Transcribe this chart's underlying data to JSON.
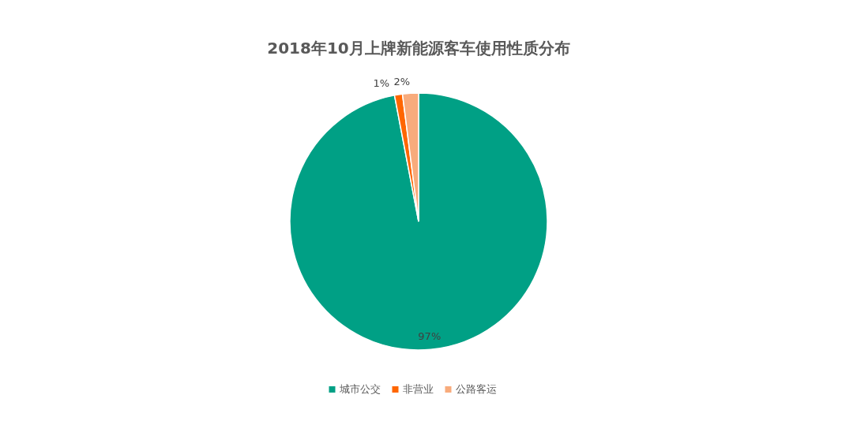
{
  "chart_data": {
    "type": "pie",
    "title": "2018年10月上牌新能源客车使用性质分布",
    "categories": [
      "城市公交",
      "非营业",
      "公路客运"
    ],
    "values": [
      97,
      1,
      2
    ],
    "colors": [
      "#00a085",
      "#ff6600",
      "#f8ab7c"
    ],
    "value_labels": [
      "97%",
      "1%",
      "2%"
    ],
    "legend": "bottom"
  }
}
